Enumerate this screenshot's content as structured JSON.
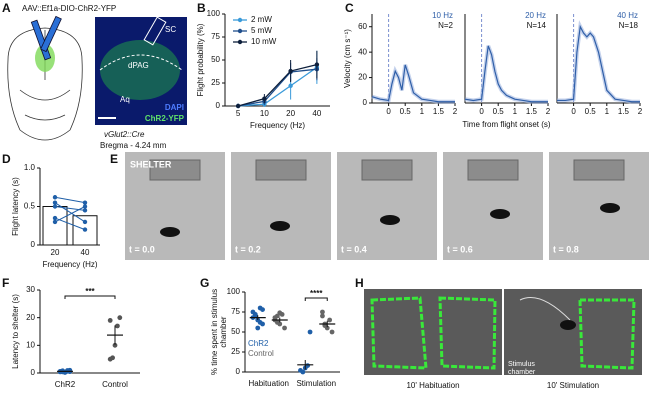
{
  "panels": {
    "letters": [
      "A",
      "B",
      "C",
      "D",
      "E",
      "F",
      "G",
      "H"
    ],
    "a": {
      "title": "AAV::Ef1a-DIO-ChR2-YFP",
      "regions": [
        "SC",
        "dPAG",
        "Aq"
      ],
      "stains": [
        "DAPI",
        "ChR2-YFP"
      ],
      "mouse": "vGlut2::Cre",
      "bregma": "Bregma - 4.24 mm"
    },
    "e": {
      "shelter": "SHELTER",
      "times": [
        "t = 0.0",
        "t = 0.2",
        "t = 0.4",
        "t = 0.6",
        "t = 0.8"
      ]
    },
    "h": {
      "chamber": [
        "Stimulus",
        "chamber"
      ],
      "captions": [
        "10' Habituation",
        "10' Stimulation"
      ]
    }
  },
  "chart_data": [
    {
      "type": "line",
      "ylabel": "Flight probability (%)",
      "xlabel": "Frequency (Hz)",
      "categories": [
        "5",
        "10",
        "20",
        "40"
      ],
      "ylim": [
        0,
        100
      ],
      "yticks": [
        0,
        25,
        50,
        75,
        100
      ],
      "series": [
        {
          "name": "2 mW",
          "color": "#3a9ad9",
          "values": [
            0,
            2,
            22,
            42
          ],
          "errors": [
            0,
            3,
            15,
            18
          ]
        },
        {
          "name": "5 mW",
          "color": "#1f4e8c",
          "values": [
            0,
            5,
            37,
            40
          ],
          "errors": [
            0,
            4,
            10,
            12
          ]
        },
        {
          "name": "10 mW",
          "color": "#0d1f3c",
          "values": [
            0,
            8,
            38,
            45
          ],
          "errors": [
            0,
            5,
            12,
            15
          ]
        }
      ]
    },
    {
      "type": "curve",
      "ylabel": "Velocity (cm s⁻¹)",
      "annotations": [
        "10 Hz",
        "N=2"
      ],
      "color": "#2f5fa8",
      "x": [
        -0.5,
        -0.25,
        0,
        0.1,
        0.2,
        0.3,
        0.4,
        0.5,
        0.6,
        0.75,
        1,
        1.25,
        1.5,
        1.75,
        2
      ],
      "values": [
        5,
        3,
        2,
        15,
        25,
        20,
        10,
        30,
        22,
        8,
        3,
        2,
        1,
        1,
        1
      ],
      "xlim": [
        -0.5,
        2
      ],
      "xticks": [
        0,
        0.5,
        1,
        1.5,
        2
      ],
      "ylim": [
        0,
        70
      ],
      "yticks": [
        0,
        20,
        40,
        60
      ]
    },
    {
      "type": "curve",
      "xlabel": "Time from flight onset (s)",
      "annotations": [
        "20 Hz",
        "N=14"
      ],
      "color": "#2f5fa8",
      "x": [
        -0.5,
        -0.25,
        0,
        0.1,
        0.2,
        0.3,
        0.4,
        0.5,
        0.6,
        0.75,
        1,
        1.25,
        1.5,
        1.75,
        2
      ],
      "values": [
        3,
        2,
        3,
        25,
        45,
        38,
        25,
        15,
        10,
        6,
        3,
        2,
        1,
        1,
        1
      ],
      "xlim": [
        -0.5,
        2
      ],
      "xticks": [
        0,
        0.5,
        1,
        1.5,
        2
      ],
      "ylim": [
        0,
        70
      ]
    },
    {
      "type": "curve",
      "annotations": [
        "40 Hz",
        "N=18"
      ],
      "color": "#2f5fa8",
      "x": [
        -0.5,
        -0.25,
        0,
        0.1,
        0.2,
        0.3,
        0.4,
        0.5,
        0.6,
        0.75,
        1,
        1.25,
        1.5,
        1.75,
        2
      ],
      "values": [
        2,
        2,
        3,
        40,
        60,
        55,
        52,
        55,
        52,
        40,
        10,
        3,
        2,
        1,
        1
      ],
      "xlim": [
        -0.5,
        2
      ],
      "xticks": [
        0,
        0.5,
        1,
        1.5,
        2
      ],
      "ylim": [
        0,
        70
      ]
    },
    {
      "type": "bar",
      "ylabel": "Flight latency (s)",
      "xlabel": "Frequency (Hz)",
      "categories": [
        "20",
        "40"
      ],
      "values": [
        0.5,
        0.38
      ],
      "color": "#ffffff",
      "line_color": "#1f5fa8",
      "individual": [
        [
          0.62,
          0.55
        ],
        [
          0.55,
          0.3
        ],
        [
          0.5,
          0.45
        ],
        [
          0.35,
          0.2
        ],
        [
          0.3,
          0.5
        ]
      ],
      "ylim": [
        0,
        1
      ],
      "yticks": [
        0,
        0.5,
        {
          "value": 1,
          "label": "1.0"
        }
      ]
    },
    {
      "type": "strip",
      "ylabel": "Latency to shelter (s)",
      "categories": [
        "ChR2",
        "Control"
      ],
      "colors": [
        "#1f5fa8",
        "#555555"
      ],
      "points": [
        [
          0.5,
          0.8,
          0.3,
          0.6,
          1.0,
          0.4,
          0.7,
          0.2,
          0.9,
          0.5,
          0.6,
          0.4
        ],
        [
          5,
          5.5,
          10,
          17,
          20,
          19
        ]
      ],
      "means": [
        0.6,
        13.7
      ],
      "sems": [
        0.1,
        3.5
      ],
      "significance": "***",
      "ylim": [
        0,
        30
      ],
      "yticks": [
        0,
        10,
        20,
        30
      ]
    },
    {
      "type": "strip",
      "ylabel": [
        "% time spent in stimulus",
        "chamber"
      ],
      "categories": [
        "Habituation",
        "Stimulation"
      ],
      "series": [
        {
          "name": "ChR2",
          "color": "#1f5fa8",
          "points": [
            [
              68,
              72,
              65,
              80,
              60,
              75,
              70,
              55,
              62,
              78
            ],
            [
              2,
              0,
              5,
              8,
              50
            ]
          ],
          "means": [
            68,
            9
          ],
          "sems": [
            3,
            6
          ]
        },
        {
          "name": "Control",
          "color": "#666666",
          "points": [
            [
              65,
              70,
              60,
              72,
              55,
              68,
              62,
              74
            ],
            [
              70,
              60,
              55,
              65,
              50,
              75,
              58
            ]
          ],
          "means": [
            65,
            60
          ],
          "sems": [
            3,
            4
          ]
        }
      ],
      "significance": "****",
      "ylim": [
        0,
        100
      ],
      "yticks": [
        0,
        25,
        50,
        75,
        100
      ]
    }
  ]
}
